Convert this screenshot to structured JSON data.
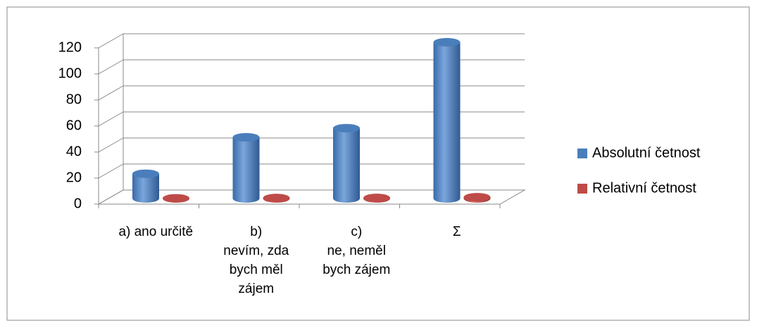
{
  "chart_data": {
    "type": "bar3d",
    "categories": [
      "a) ano určitě",
      "b)\nnevím, zda bych měl zájem",
      "c)\nne, neměl bych zájem",
      "Σ"
    ],
    "series": [
      {
        "name": "Absolutní četnost",
        "color": "#4a7ebb",
        "values": [
          19,
          47,
          54,
          120
        ]
      },
      {
        "name": "Relativní četnost",
        "color": "#be4b48",
        "values": [
          0.16,
          0.39,
          0.45,
          1
        ]
      }
    ],
    "ylim": [
      0,
      120
    ],
    "yticks": [
      0,
      20,
      40,
      60,
      80,
      100,
      120
    ],
    "grid": true,
    "legend": "right"
  }
}
